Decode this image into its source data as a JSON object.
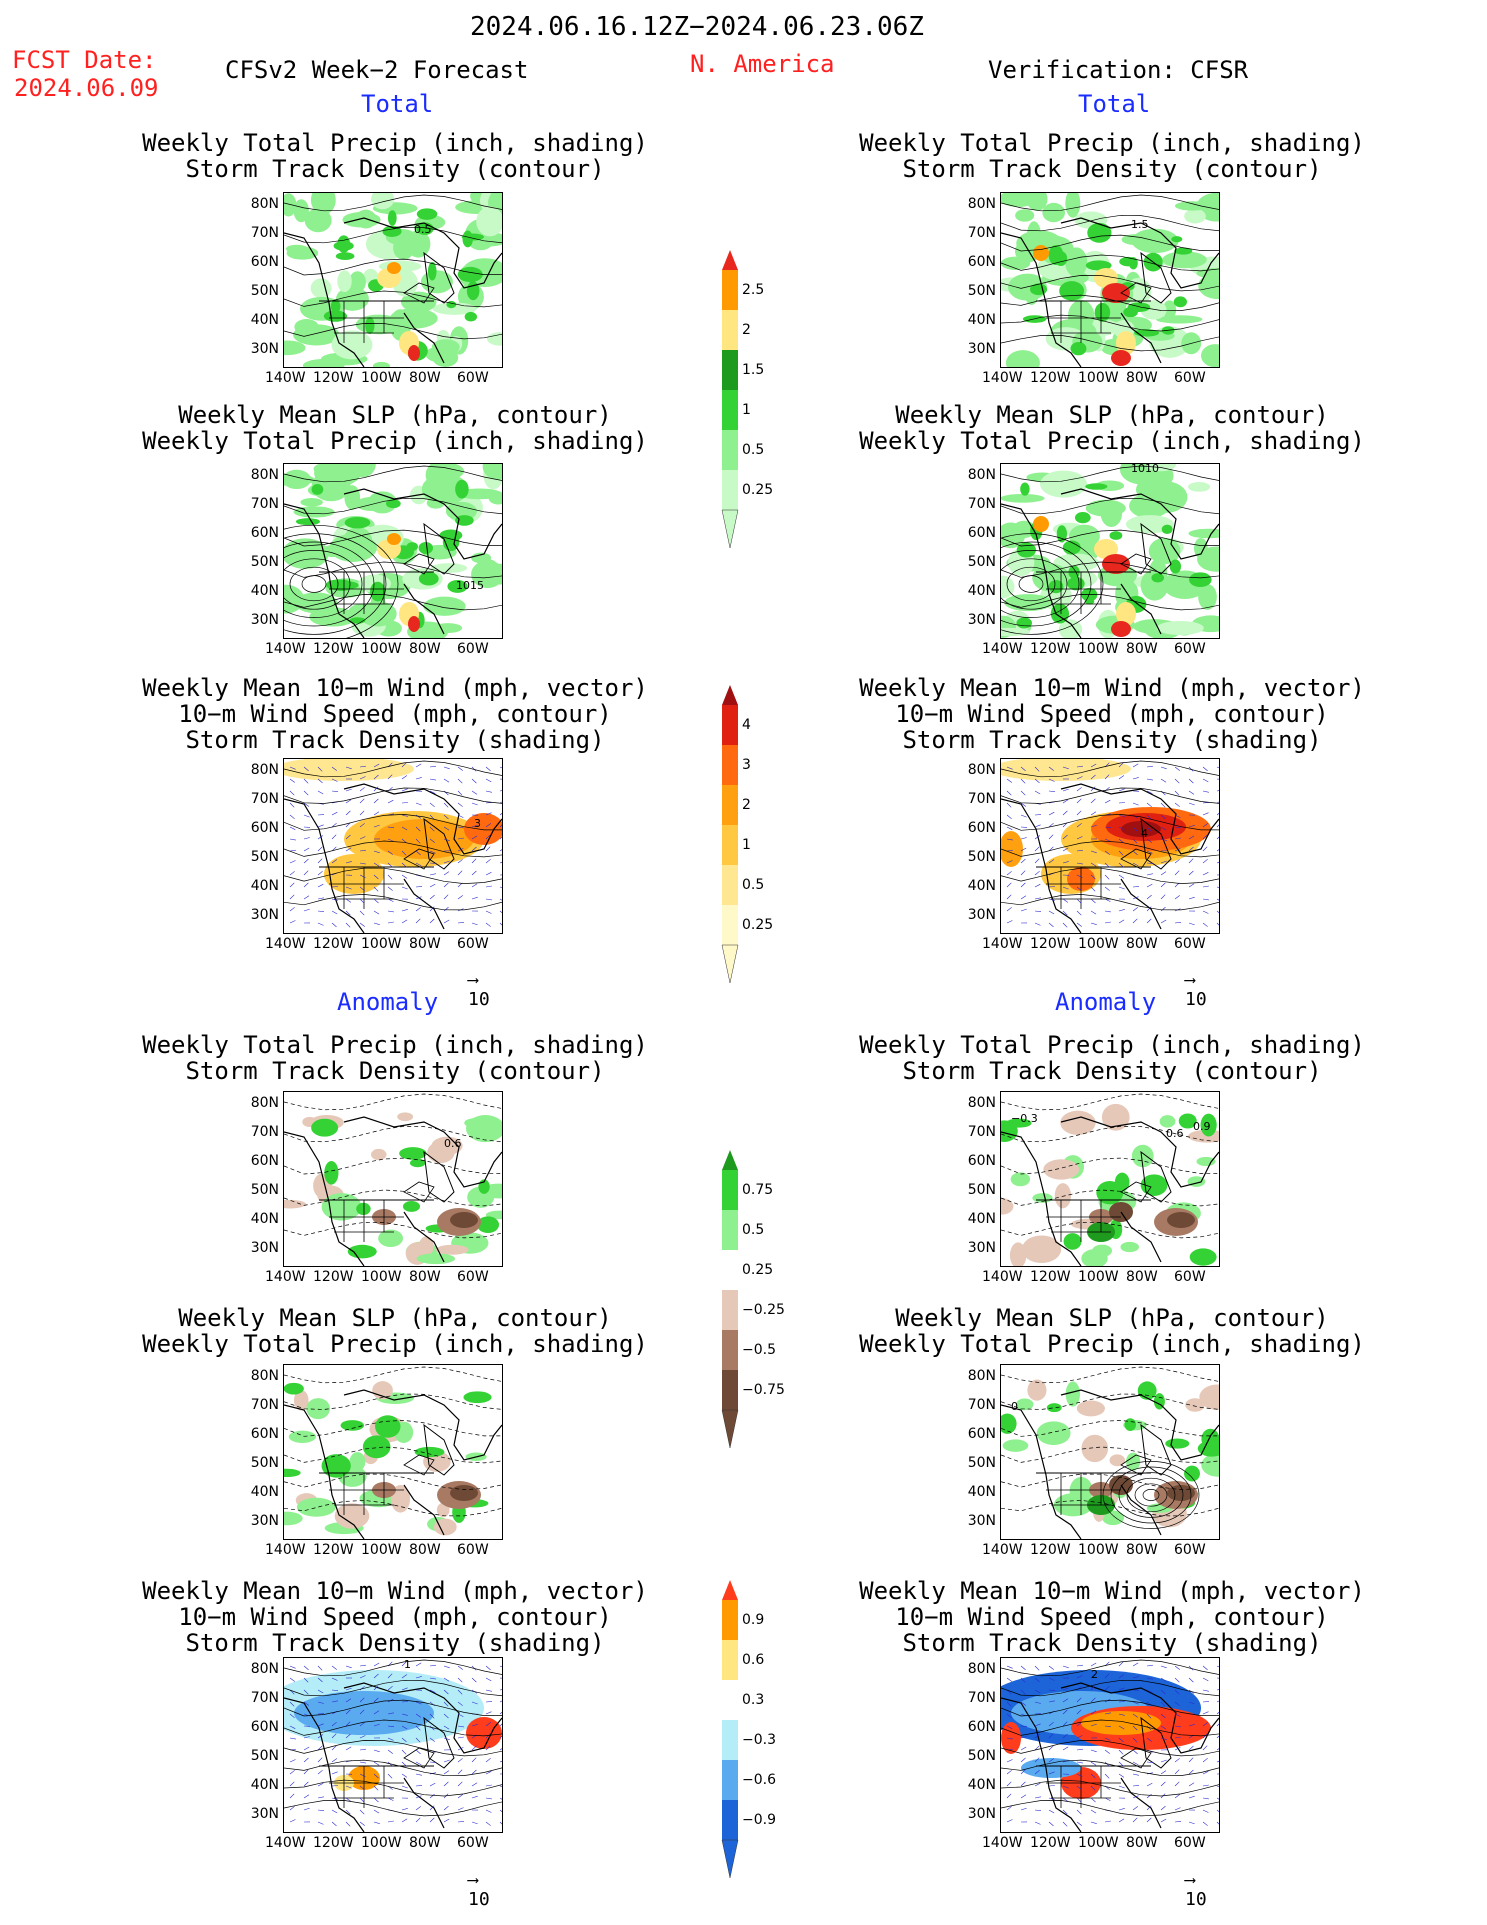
{
  "header": {
    "period": "2024.06.16.12Z−2024.06.23.06Z",
    "fcst_label": "FCST Date:",
    "fcst_date": "2024.06.09",
    "model": "CFSv2 Week−2 Forecast",
    "region": "N. America",
    "verification": "Verification: CFSR"
  },
  "sections": {
    "total": "Total",
    "anomaly": "Anomaly"
  },
  "panel_titles": {
    "precip_storm": [
      "Weekly Total Precip (inch, shading)",
      "Storm Track Density (contour)"
    ],
    "slp_precip": [
      "Weekly Mean SLP (hPa, contour)",
      "Weekly Total Precip (inch, shading)"
    ],
    "wind_storm": [
      "Weekly Mean 10−m Wind (mph, vector)",
      "10−m Wind Speed (mph, contour)",
      "Storm Track Density (shading)"
    ]
  },
  "axes": {
    "lat": [
      "80N",
      "70N",
      "60N",
      "50N",
      "40N",
      "30N"
    ],
    "lon": [
      "140W",
      "120W",
      "100W",
      "80W",
      "60W"
    ]
  },
  "contour_labels": {
    "f_precip_storm": "0.5",
    "v_precip_storm": "1.5",
    "f_slp": "1015",
    "v_slp": "1010",
    "f_wind": "3",
    "v_wind": "4",
    "f_anom_storm": "0.6",
    "v_anom_storm": [
      "−0.3",
      "0.6",
      "0.9"
    ],
    "v_anom_slp": "0",
    "f_anom_wind": "1",
    "v_anom_wind": "2"
  },
  "vector_ref": "10",
  "colorbars": {
    "precip_total": {
      "labels": [
        "2.5",
        "2",
        "1.5",
        "1",
        "0.5",
        "0.25"
      ],
      "colors": [
        "#e8281e",
        "#ff9a00",
        "#ffe680",
        "#1e9a1e",
        "#34d234",
        "#8ef08e",
        "#c8fac8"
      ]
    },
    "storm_total": {
      "labels": [
        "4",
        "3",
        "2",
        "1",
        "0.5",
        "0.25"
      ],
      "colors": [
        "#a01010",
        "#e02010",
        "#ff6a10",
        "#ffa010",
        "#ffc840",
        "#ffe690",
        "#fff8c8"
      ]
    },
    "precip_anom": {
      "labels": [
        "0.75",
        "0.5",
        "0.25",
        "−0.25",
        "−0.5",
        "−0.75"
      ],
      "colors": [
        "#1e9a1e",
        "#34d234",
        "#8ef08e",
        "#ffffff",
        "#e6c8b8",
        "#a87a64",
        "#6e4a36"
      ]
    },
    "storm_anom": {
      "labels": [
        "0.9",
        "0.6",
        "0.3",
        "−0.3",
        "−0.6",
        "−0.9"
      ],
      "colors": [
        "#ff3c1c",
        "#ff9a00",
        "#ffe680",
        "#ffffff",
        "#b4ecf8",
        "#5aaaf0",
        "#1c64d8"
      ]
    }
  }
}
